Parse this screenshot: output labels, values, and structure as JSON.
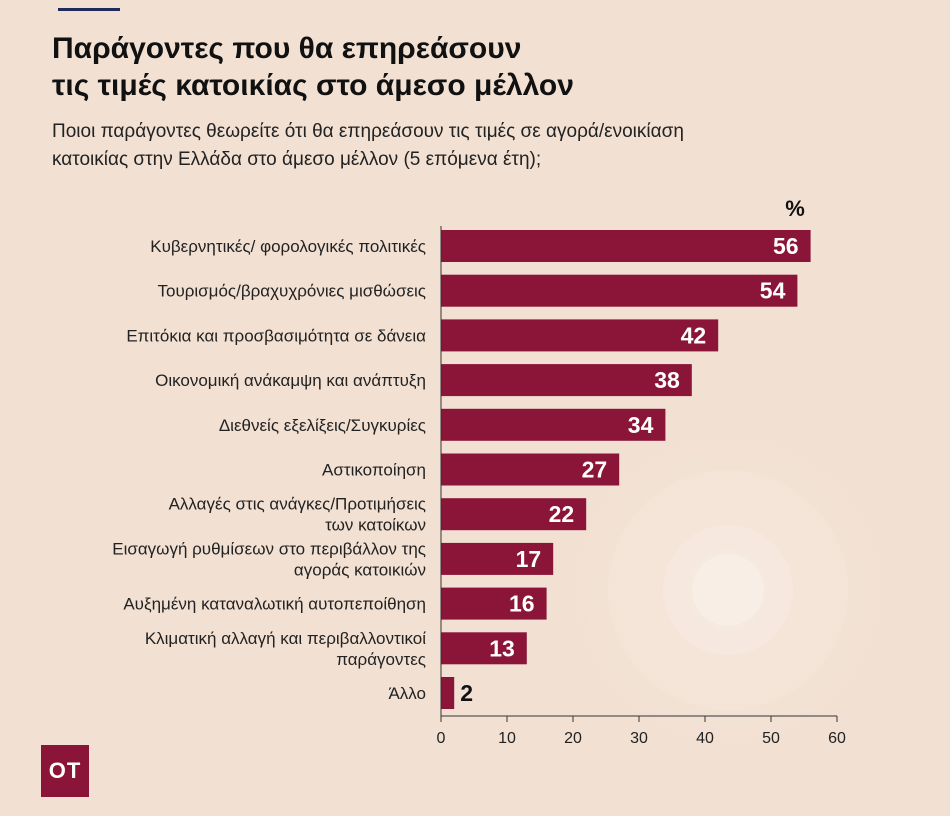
{
  "header": {
    "title_lines": [
      "Παράγοντες που θα επηρεάσουν",
      "τις τιμές κατοικίας στο άμεσο μέλλον"
    ],
    "subtitle_lines": [
      "Ποιοι παράγοντες θεωρείτε ότι θα επηρεάσουν τις τιμές σε αγορά/ενοικίαση",
      "κατοικίας στην Ελλάδα στο άμεσο μέλλον (5 επόμενα έτη);"
    ]
  },
  "logo": {
    "text": "ΟΤ"
  },
  "colors": {
    "bar": "#8a1538",
    "background": "#f2e1d3",
    "accent_rule": "#1f2a5a"
  },
  "chart_data": {
    "type": "bar",
    "orientation": "horizontal",
    "unit_label": "%",
    "categories": [
      [
        "Κυβερνητικές/ φορολογικές πολιτικές"
      ],
      [
        "Τουρισμός/βραχυχρόνιες μισθώσεις"
      ],
      [
        "Επιτόκια και προσβασιμότητα σε δάνεια"
      ],
      [
        "Οικονομική ανάκαμψη και ανάπτυξη"
      ],
      [
        "Διεθνείς εξελίξεις/Συγκυρίες"
      ],
      [
        "Αστικοποίηση"
      ],
      [
        "Αλλαγές στις ανάγκες/Προτιμήσεις",
        "των κατοίκων"
      ],
      [
        "Εισαγωγή ρυθμίσεων στο περιβάλλον της",
        "αγοράς κατοικιών"
      ],
      [
        "Αυξημένη καταναλωτική αυτοπεποίθηση"
      ],
      [
        "Κλιματική αλλαγή και περιβαλλοντικοί",
        "παράγοντες"
      ],
      [
        "Άλλο"
      ]
    ],
    "values": [
      56,
      54,
      42,
      38,
      34,
      27,
      22,
      17,
      16,
      13,
      2
    ],
    "xlim": [
      0,
      60
    ],
    "xticks": [
      0,
      10,
      20,
      30,
      40,
      50,
      60
    ],
    "grid": false,
    "legend": "none"
  }
}
